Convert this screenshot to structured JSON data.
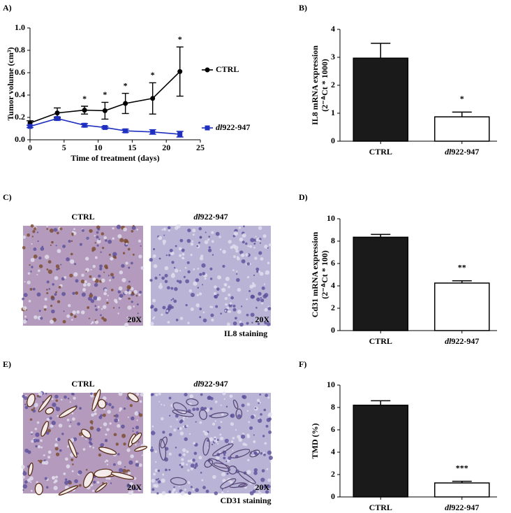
{
  "chart_data": [
    {
      "type": "line",
      "label": "A)",
      "x_label": "Time of treatment (days)",
      "y_label": [
        "Tumor volume (cm³)"
      ],
      "x": [
        0,
        4,
        8,
        11,
        14,
        18,
        22
      ],
      "series": [
        {
          "name": "CTRL",
          "color": "#000000",
          "marker": "circle",
          "values": [
            0.15,
            0.24,
            0.265,
            0.26,
            0.325,
            0.37,
            0.61
          ],
          "errors": [
            0.02,
            0.045,
            0.035,
            0.075,
            0.09,
            0.14,
            0.22
          ]
        },
        {
          "name": "dl922-947",
          "color": "#1f2fbf",
          "marker": "square",
          "values": [
            0.12,
            0.19,
            0.13,
            0.11,
            0.08,
            0.07,
            0.05
          ],
          "errors": [
            0.01,
            0.015,
            0.015,
            0.01,
            0.015,
            0.02,
            0.025
          ]
        }
      ],
      "annotations": [
        null,
        null,
        "*",
        "*",
        "*",
        "*",
        "*"
      ],
      "xlim": [
        0,
        25
      ],
      "xticks": [
        0,
        5,
        10,
        15,
        20,
        25
      ],
      "ylim": [
        0,
        1
      ],
      "yticks": [
        {
          "value": 0,
          "label": "0.0"
        },
        0.2,
        0.4,
        0.6,
        0.8,
        {
          "value": 1,
          "label": "1.0"
        }
      ],
      "legend": "right"
    },
    {
      "type": "bar",
      "label": "B)",
      "y_label": [
        "IL8 mRNA expression",
        "(2⁻ᐞCt * 1000)"
      ],
      "categories": [
        "CTRL",
        "dl922-947"
      ],
      "values": [
        2.97,
        0.87
      ],
      "errors": [
        0.53,
        0.17
      ],
      "colors": [
        "#1a1a1a",
        "#ffffff"
      ],
      "annotations": [
        null,
        "*"
      ],
      "ylim": [
        0,
        4
      ],
      "yticks": [
        0,
        1,
        2,
        3,
        4
      ]
    },
    {
      "type": "bar",
      "label": "D)",
      "y_label": [
        "Cd31 mRNA expression",
        "(2⁻ᐞCt * 100)"
      ],
      "categories": [
        "CTRL",
        "dl922-947"
      ],
      "values": [
        8.35,
        4.25
      ],
      "errors": [
        0.25,
        0.2
      ],
      "colors": [
        "#1a1a1a",
        "#ffffff"
      ],
      "annotations": [
        null,
        "**"
      ],
      "ylim": [
        0,
        10
      ],
      "yticks": [
        0,
        2,
        4,
        6,
        8,
        10
      ]
    },
    {
      "type": "bar",
      "label": "F)",
      "y_label": [
        "TMD (%)"
      ],
      "categories": [
        "CTRL",
        "dl922-947"
      ],
      "values": [
        8.2,
        1.25
      ],
      "errors": [
        0.4,
        0.15
      ],
      "colors": [
        "#1a1a1a",
        "#ffffff"
      ],
      "annotations": [
        null,
        "***"
      ],
      "ylim": [
        0,
        10
      ],
      "yticks": [
        0,
        2,
        4,
        6,
        8,
        10
      ]
    }
  ],
  "image_panels": [
    {
      "label": "C)",
      "images": [
        {
          "title": "CTRL",
          "magnification": "20X"
        },
        {
          "title": "dl922-947",
          "magnification": "20X"
        }
      ],
      "caption": "IL8 staining"
    },
    {
      "label": "E)",
      "images": [
        {
          "title": "CTRL",
          "magnification": "20X"
        },
        {
          "title": "dl922-947",
          "magnification": "20X"
        }
      ],
      "caption": "CD31 staining"
    }
  ]
}
